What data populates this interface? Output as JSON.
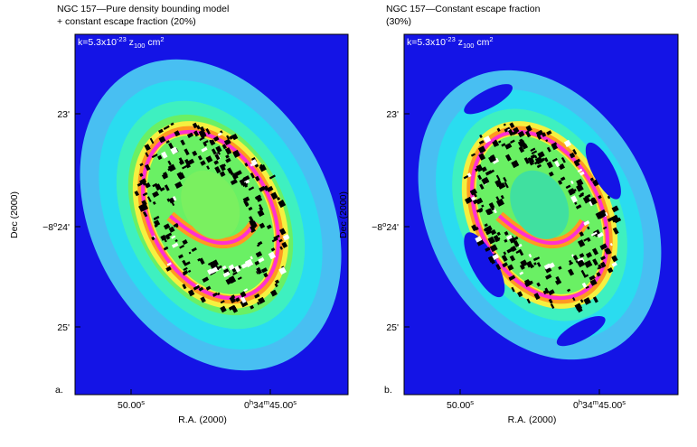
{
  "panels": [
    {
      "title": [
        "NGC 157—Pure density bounding model",
        "+ constant escape fraction (20%)"
      ],
      "annotation": [
        "k=5.3x10",
        "-23",
        " z",
        "100",
        " cm",
        "2"
      ],
      "yticks": [
        [
          "23'"
        ],
        [
          "−8",
          "o",
          "24'"
        ],
        [
          "25'"
        ]
      ],
      "xticks": [
        [
          "50.00",
          "s"
        ],
        [
          "0",
          "h",
          "34",
          "m",
          "45.00",
          "s"
        ]
      ],
      "ylabel": "Dec (2000)",
      "xlabel": "R.A. (2000)",
      "letter": "a."
    },
    {
      "title": [
        "NGC 157—Constant escape fraction",
        "(30%)"
      ],
      "annotation": [
        "k=5.3x10",
        "-23",
        " z",
        "100",
        " cm",
        "2"
      ],
      "yticks": [
        [
          "23'"
        ],
        [
          "−8",
          "o",
          "24'"
        ],
        [
          "25'"
        ]
      ],
      "xticks": [
        [
          "50.00",
          "s"
        ],
        [
          "0",
          "h",
          "34",
          "m",
          "45.00",
          "s"
        ]
      ],
      "ylabel": "Dec (2000)",
      "xlabel": "R.A. (2000)",
      "letter": "b."
    }
  ]
}
